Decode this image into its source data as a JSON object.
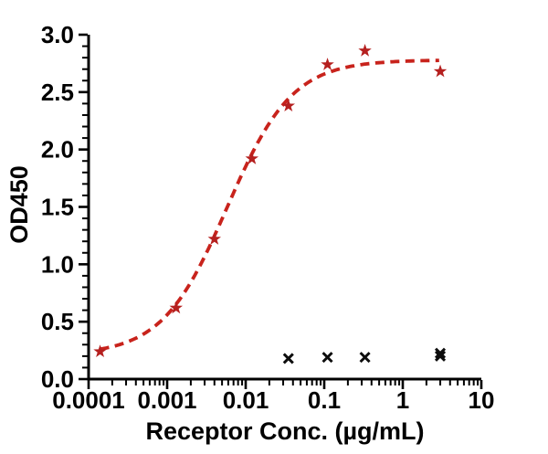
{
  "chart_data": {
    "type": "scatter",
    "title": "",
    "xlabel": "Receptor Conc. (µg/mL)",
    "ylabel": "OD450",
    "x_scale": "log10",
    "xlim": [
      0.0001,
      10
    ],
    "ylim": [
      0.0,
      3.0
    ],
    "grid": false,
    "legend": "none",
    "x_ticks": [
      0.0001,
      0.001,
      0.01,
      0.1,
      1,
      10
    ],
    "x_tick_labels": [
      "0.0001",
      "0.001",
      "0.01",
      "0.1",
      "1",
      "10"
    ],
    "x_minor_ticks": "log decades, 2-9 per decade",
    "y_ticks": [
      0.0,
      0.5,
      1.0,
      1.5,
      2.0,
      2.5,
      3.0
    ],
    "y_tick_labels": [
      "0.0",
      "0.5",
      "1.0",
      "1.5",
      "2.0",
      "2.5",
      "3.0"
    ],
    "y_minor_step": 0.1,
    "axis_color": "#000000",
    "series": [
      {
        "id": "series-red-star",
        "marker": "star",
        "color": "#b5201f",
        "points": [
          [
            0.00014,
            0.24
          ],
          [
            0.0013,
            0.62
          ],
          [
            0.004,
            1.22
          ],
          [
            0.012,
            1.92
          ],
          [
            0.035,
            2.38
          ],
          [
            0.11,
            2.74
          ],
          [
            0.33,
            2.86
          ],
          [
            3.0,
            2.68
          ]
        ]
      },
      {
        "id": "series-black-x",
        "marker": "x",
        "color": "#0d0d0d",
        "points": [
          [
            0.035,
            0.18
          ],
          [
            0.11,
            0.19
          ],
          [
            0.33,
            0.19
          ],
          [
            3.0,
            0.2
          ],
          [
            3.0,
            0.225
          ]
        ]
      }
    ],
    "fit_curve": {
      "model": "4PL",
      "bottom": 0.21,
      "top": 2.78,
      "ec50": 0.0058,
      "hill": 1.05,
      "x_start": 0.00014,
      "x_end": 2.9,
      "color": "#c8231c",
      "style": "dashed"
    }
  }
}
